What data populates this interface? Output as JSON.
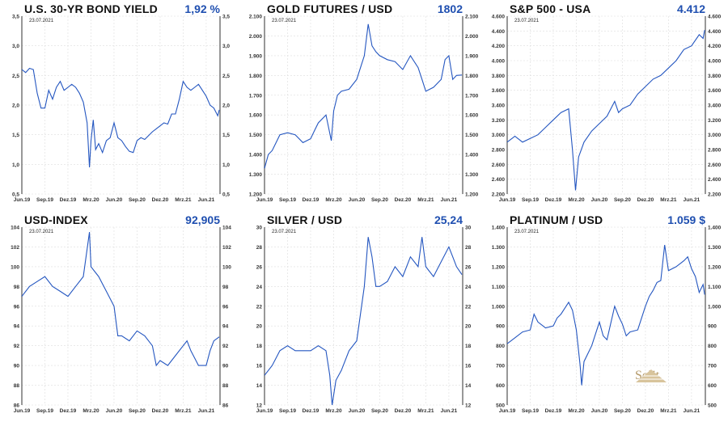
{
  "chart_data": [
    {
      "type": "line",
      "title": "U.S. 30-YR BOND YIELD",
      "value_label": "1,92 %",
      "date": "23.07.2021",
      "ylim": [
        0.5,
        3.5
      ],
      "yticks": [
        "0,5",
        "1,0",
        "1,5",
        "2,0",
        "2,5",
        "3,0",
        "3,5"
      ],
      "ytick_values": [
        0.5,
        1,
        1.5,
        2,
        2.5,
        3,
        3.5
      ],
      "x": [
        0,
        0.5,
        1,
        1.5,
        2,
        2.5,
        3,
        3.5,
        4,
        4.5,
        5,
        5.5,
        6,
        6.5,
        7,
        7.5,
        8,
        8.5,
        8.8,
        9,
        9.3,
        9.6,
        10,
        10.5,
        11,
        11.5,
        12,
        12.5,
        13,
        13.5,
        14,
        14.5,
        15,
        15.5,
        16,
        17,
        17.5,
        18,
        18.5,
        19,
        19.5,
        20,
        20.5,
        21,
        21.5,
        22,
        22.5,
        23,
        23.5,
        24,
        24.5,
        25,
        25.5,
        25.7
      ],
      "y": [
        2.6,
        2.55,
        2.62,
        2.6,
        2.2,
        1.95,
        1.95,
        2.25,
        2.1,
        2.3,
        2.4,
        2.25,
        2.3,
        2.35,
        2.3,
        2.2,
        2.05,
        1.7,
        0.95,
        1.4,
        1.75,
        1.25,
        1.35,
        1.2,
        1.4,
        1.45,
        1.7,
        1.45,
        1.4,
        1.3,
        1.22,
        1.2,
        1.4,
        1.45,
        1.42,
        1.55,
        1.6,
        1.65,
        1.7,
        1.68,
        1.85,
        1.85,
        2.1,
        2.4,
        2.3,
        2.25,
        2.3,
        2.35,
        2.25,
        2.15,
        2.0,
        1.95,
        1.82,
        1.92
      ]
    },
    {
      "type": "line",
      "title": "GOLD FUTURES / USD",
      "value_label": "1802",
      "date": "23.07.2021",
      "ylim": [
        1200,
        2100
      ],
      "yticks": [
        "1.200",
        "1.300",
        "1.400",
        "1.500",
        "1.600",
        "1.700",
        "1.800",
        "1.900",
        "2.000",
        "2.100"
      ],
      "ytick_values": [
        1200,
        1300,
        1400,
        1500,
        1600,
        1700,
        1800,
        1900,
        2000,
        2100
      ],
      "x": [
        0,
        0.5,
        1,
        2,
        3,
        4,
        5,
        6,
        6.5,
        7,
        8,
        8.7,
        9,
        9.5,
        10,
        11,
        12,
        13,
        13.5,
        14,
        14.5,
        15,
        16,
        17,
        18,
        19,
        20,
        20.5,
        21,
        22,
        23,
        23.5,
        24,
        24.5,
        25,
        25.7
      ],
      "y": [
        1330,
        1400,
        1420,
        1500,
        1510,
        1500,
        1460,
        1480,
        1520,
        1560,
        1600,
        1470,
        1620,
        1700,
        1720,
        1730,
        1780,
        1900,
        2060,
        1950,
        1920,
        1900,
        1880,
        1870,
        1830,
        1900,
        1840,
        1780,
        1720,
        1740,
        1780,
        1880,
        1900,
        1780,
        1800,
        1802
      ]
    },
    {
      "type": "line",
      "title": "S&P 500 - USA",
      "value_label": "4.412",
      "date": "23.07.2021",
      "ylim": [
        2200,
        4600
      ],
      "yticks": [
        "2.200",
        "2.400",
        "2.600",
        "2.800",
        "3.000",
        "3.200",
        "3.400",
        "3.600",
        "3.800",
        "4.000",
        "4.200",
        "4.400",
        "4.600"
      ],
      "ytick_values": [
        2200,
        2400,
        2600,
        2800,
        3000,
        3200,
        3400,
        3600,
        3800,
        4000,
        4200,
        4400,
        4600
      ],
      "x": [
        0,
        1,
        2,
        3,
        4,
        5,
        6,
        7,
        8,
        8.5,
        8.9,
        9.3,
        10,
        11,
        12,
        13,
        14,
        14.5,
        15,
        16,
        17,
        18,
        19,
        20,
        21,
        22,
        23,
        24,
        25,
        25.5,
        25.7
      ],
      "y": [
        2900,
        2980,
        2900,
        2950,
        3000,
        3100,
        3200,
        3300,
        3350,
        2800,
        2250,
        2700,
        2900,
        3050,
        3150,
        3250,
        3450,
        3300,
        3350,
        3400,
        3550,
        3650,
        3750,
        3800,
        3900,
        4000,
        4150,
        4200,
        4350,
        4300,
        4412
      ]
    },
    {
      "type": "line",
      "title": "USD-INDEX",
      "value_label": "92,905",
      "date": "23.07.2021",
      "ylim": [
        86,
        104
      ],
      "yticks": [
        "86",
        "88",
        "90",
        "92",
        "94",
        "96",
        "98",
        "100",
        "102",
        "104"
      ],
      "ytick_values": [
        86,
        88,
        90,
        92,
        94,
        96,
        98,
        100,
        102,
        104
      ],
      "x": [
        0,
        1,
        2,
        3,
        4,
        5,
        6,
        7,
        8,
        8.8,
        9,
        9.5,
        10,
        11,
        12,
        12.5,
        13,
        14,
        15,
        16,
        17,
        17.5,
        18,
        19,
        20,
        21,
        21.5,
        22,
        23,
        24,
        24.5,
        25,
        25.7
      ],
      "y": [
        97,
        98,
        98.5,
        99,
        98,
        97.5,
        97,
        98,
        99,
        103.5,
        100,
        99.5,
        99,
        97.5,
        96,
        93,
        93,
        92.5,
        93.5,
        93,
        92,
        90,
        90.5,
        90,
        91,
        92,
        92.5,
        91.5,
        90,
        90,
        91.5,
        92.5,
        92.9
      ]
    },
    {
      "type": "line",
      "title": "SILVER / USD",
      "value_label": "25,24",
      "date": "23.07.2021",
      "ylim": [
        12,
        30
      ],
      "yticks": [
        "12",
        "14",
        "16",
        "18",
        "20",
        "22",
        "24",
        "26",
        "28",
        "30"
      ],
      "ytick_values": [
        12,
        14,
        16,
        18,
        20,
        22,
        24,
        26,
        28,
        30
      ],
      "x": [
        0,
        1,
        2,
        3,
        4,
        5,
        6,
        7,
        8,
        8.5,
        8.8,
        9.3,
        10,
        11,
        12,
        13,
        13.5,
        14,
        14.5,
        15,
        16,
        17,
        18,
        19,
        20,
        20.5,
        21,
        22,
        23,
        24,
        24.5,
        25,
        25.7
      ],
      "y": [
        15,
        16,
        17.5,
        18,
        17.5,
        17.5,
        17.5,
        18,
        17.5,
        15,
        12,
        14.5,
        15.5,
        17.5,
        18.5,
        24,
        29,
        27,
        24,
        24,
        24.5,
        26,
        25,
        27,
        26,
        29,
        26,
        25,
        26.5,
        28,
        27,
        26,
        25.2
      ]
    },
    {
      "type": "line",
      "title": "PLATINUM / USD",
      "value_label": "1.059 $",
      "date": "23.07.2021",
      "ylim": [
        500,
        1400
      ],
      "yticks": [
        "500",
        "600",
        "700",
        "800",
        "900",
        "1.000",
        "1.100",
        "1.200",
        "1.300",
        "1.400"
      ],
      "ytick_values": [
        500,
        600,
        700,
        800,
        900,
        1000,
        1100,
        1200,
        1300,
        1400
      ],
      "x": [
        0,
        1,
        2,
        3,
        3.5,
        4,
        5,
        6,
        6.5,
        7,
        8,
        8.5,
        9,
        9.5,
        9.7,
        10,
        11,
        12,
        12.5,
        13,
        14,
        14.5,
        15,
        15.5,
        16,
        17,
        18,
        18.5,
        19,
        19.5,
        20,
        20.5,
        21,
        22,
        23,
        23.5,
        24,
        24.5,
        25,
        25.5,
        25.7
      ],
      "y": [
        810,
        840,
        870,
        880,
        960,
        920,
        890,
        900,
        940,
        960,
        1020,
        980,
        880,
        700,
        600,
        720,
        800,
        920,
        850,
        830,
        1000,
        950,
        910,
        850,
        870,
        880,
        1000,
        1050,
        1080,
        1120,
        1130,
        1310,
        1180,
        1200,
        1230,
        1250,
        1190,
        1150,
        1070,
        1110,
        1059
      ],
      "watermark": "Solit"
    }
  ],
  "x_axis": {
    "range_months": [
      0,
      25.8
    ],
    "ticks": [
      "Jun.19",
      "Sep.19",
      "Dez.19",
      "Mrz.20",
      "Jun.20",
      "Sep.20",
      "Dez.20",
      "Mrz.21",
      "Jun.21"
    ],
    "tick_months": [
      0,
      3,
      6,
      9,
      12,
      15,
      18,
      21,
      24
    ]
  },
  "colors": {
    "line": "#2456c0",
    "value": "#1f4fb0",
    "grid": "#dddddd",
    "axis": "#777777"
  }
}
